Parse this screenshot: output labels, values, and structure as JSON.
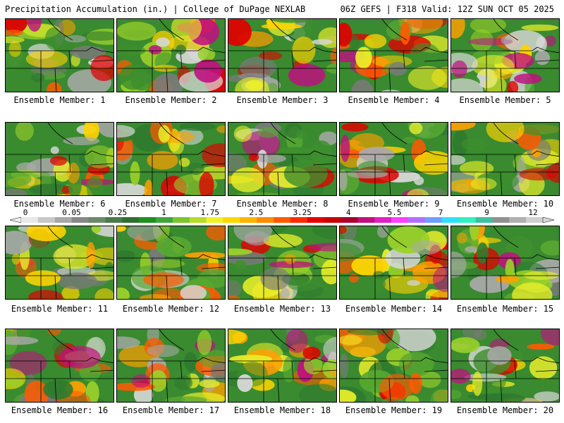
{
  "header": {
    "title_left": "Precipitation Accumulation (in.) | College of DuPage NEXLAB",
    "title_right": "06Z GEFS | F318 Valid: 12Z SUN OCT 05 2025"
  },
  "panels": [
    {
      "label": "Ensemble Member: 1"
    },
    {
      "label": "Ensemble Member: 2"
    },
    {
      "label": "Ensemble Member: 3"
    },
    {
      "label": "Ensemble Member: 4"
    },
    {
      "label": "Ensemble Member: 5"
    },
    {
      "label": "Ensemble Member: 6"
    },
    {
      "label": "Ensemble Member: 7"
    },
    {
      "label": "Ensemble Member: 8"
    },
    {
      "label": "Ensemble Member: 9"
    },
    {
      "label": "Ensemble Member: 10"
    },
    {
      "label": "Ensemble Member: 11"
    },
    {
      "label": "Ensemble Member: 12"
    },
    {
      "label": "Ensemble Member: 13"
    },
    {
      "label": "Ensemble Member: 14"
    },
    {
      "label": "Ensemble Member: 15"
    },
    {
      "label": "Ensemble Member: 16"
    },
    {
      "label": "Ensemble Member: 17"
    },
    {
      "label": "Ensemble Member: 18"
    },
    {
      "label": "Ensemble Member: 19"
    },
    {
      "label": "Ensemble Member: 20"
    }
  ],
  "colorbar": {
    "labels": [
      "0",
      "0.05",
      "0.25",
      "1",
      "1.75",
      "2.5",
      "3.25",
      "4",
      "5.5",
      "7",
      "9",
      "12"
    ],
    "colors": [
      "#e8e8e8",
      "#c8c8c8",
      "#a8a8a8",
      "#888888",
      "#6a8a6a",
      "#4a7a4a",
      "#2f6f2f",
      "#1f8f1f",
      "#3fa53f",
      "#7cc42c",
      "#b4dc28",
      "#f0f028",
      "#ffd700",
      "#ffb400",
      "#ff8c00",
      "#ff5a00",
      "#ff2a00",
      "#e60000",
      "#c80000",
      "#aa0030",
      "#c01080",
      "#e020c0",
      "#ff40ff",
      "#b070ff",
      "#6fa0ff",
      "#30e0ff",
      "#30f0c0",
      "#40c0a0",
      "#909090",
      "#b0b0b0",
      "#d0d0d0"
    ]
  }
}
